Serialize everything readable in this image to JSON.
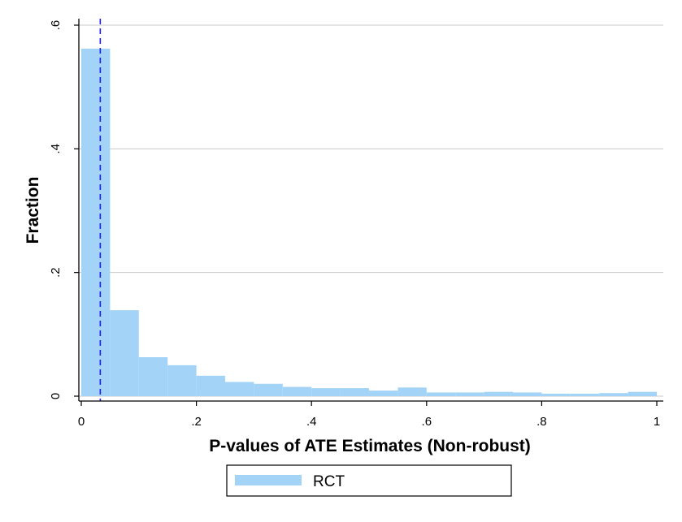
{
  "chart_data": {
    "type": "bar",
    "subtype": "histogram",
    "xlabel": "P-values of ATE Estimates (Non-robust)",
    "ylabel": "Fraction",
    "xlim": [
      0,
      1
    ],
    "ylim": [
      0,
      0.6
    ],
    "x_ticks": [
      {
        "value": 0,
        "label": "0"
      },
      {
        "value": 0.2,
        "label": ".2"
      },
      {
        "value": 0.4,
        "label": ".4"
      },
      {
        "value": 0.6,
        "label": ".6"
      },
      {
        "value": 0.8,
        "label": ".8"
      },
      {
        "value": 1,
        "label": "1"
      }
    ],
    "y_ticks": [
      {
        "value": 0,
        "label": "0"
      },
      {
        "value": 0.2,
        "label": ".2"
      },
      {
        "value": 0.4,
        "label": ".4"
      },
      {
        "value": 0.6,
        "label": ".6"
      }
    ],
    "grid": true,
    "bin_width": 0.05,
    "bins": [
      {
        "start": 0.0,
        "end": 0.05,
        "value": 0.562
      },
      {
        "start": 0.05,
        "end": 0.1,
        "value": 0.139
      },
      {
        "start": 0.1,
        "end": 0.15,
        "value": 0.063
      },
      {
        "start": 0.15,
        "end": 0.2,
        "value": 0.05
      },
      {
        "start": 0.2,
        "end": 0.25,
        "value": 0.033
      },
      {
        "start": 0.25,
        "end": 0.3,
        "value": 0.023
      },
      {
        "start": 0.3,
        "end": 0.35,
        "value": 0.02
      },
      {
        "start": 0.35,
        "end": 0.4,
        "value": 0.015
      },
      {
        "start": 0.4,
        "end": 0.45,
        "value": 0.013
      },
      {
        "start": 0.45,
        "end": 0.5,
        "value": 0.013
      },
      {
        "start": 0.5,
        "end": 0.55,
        "value": 0.009
      },
      {
        "start": 0.55,
        "end": 0.6,
        "value": 0.014
      },
      {
        "start": 0.6,
        "end": 0.65,
        "value": 0.006
      },
      {
        "start": 0.65,
        "end": 0.7,
        "value": 0.006
      },
      {
        "start": 0.7,
        "end": 0.75,
        "value": 0.007
      },
      {
        "start": 0.75,
        "end": 0.8,
        "value": 0.006
      },
      {
        "start": 0.8,
        "end": 0.85,
        "value": 0.004
      },
      {
        "start": 0.85,
        "end": 0.9,
        "value": 0.004
      },
      {
        "start": 0.9,
        "end": 0.95,
        "value": 0.005
      },
      {
        "start": 0.95,
        "end": 1.0,
        "value": 0.007
      }
    ],
    "reference_line": {
      "x": 0.033,
      "style": "dashed",
      "color": "#1f1fe0"
    },
    "series": [
      {
        "name": "RCT",
        "color": "#a3d4f7"
      }
    ],
    "legend_position": "bottom-center"
  }
}
